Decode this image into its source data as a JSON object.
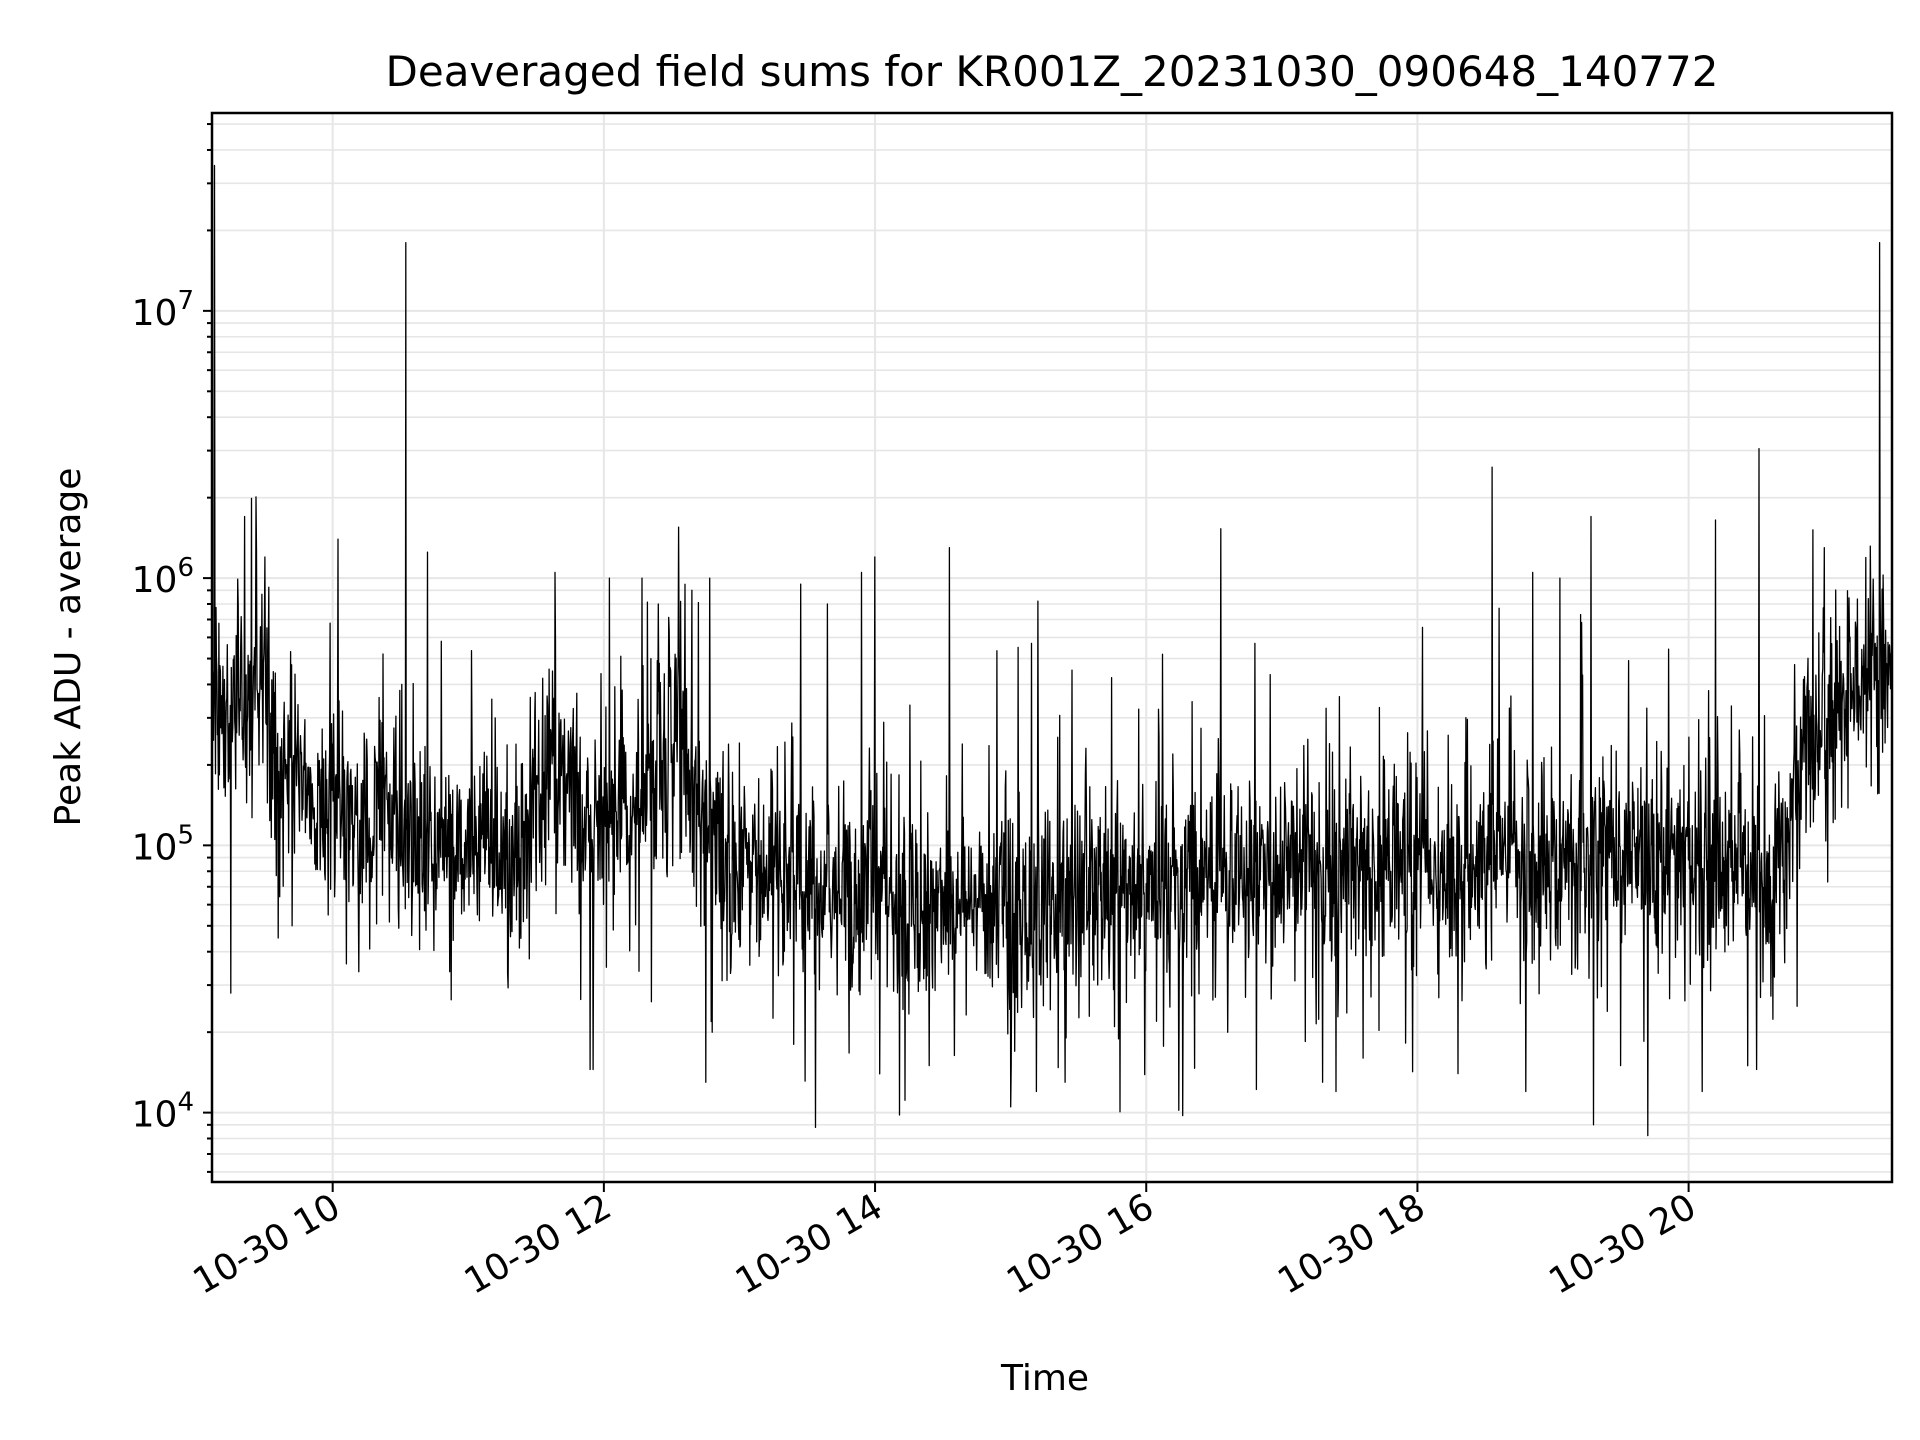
{
  "chart_data": {
    "type": "line",
    "title": "Deaveraged field sums for KR001Z_20231030_090648_140772",
    "xlabel": "Time",
    "ylabel": "Peak ADU - average",
    "x_range_hours": [
      9.11,
      21.5
    ],
    "ylim": [
      5500,
      55000000
    ],
    "yscale": "log",
    "grid": true,
    "line_color": "#000000",
    "x_ticks": [
      {
        "hour": 10,
        "label": "10-30 10"
      },
      {
        "hour": 12,
        "label": "10-30 12"
      },
      {
        "hour": 14,
        "label": "10-30 14"
      },
      {
        "hour": 16,
        "label": "10-30 16"
      },
      {
        "hour": 18,
        "label": "10-30 18"
      },
      {
        "hour": 20,
        "label": "10-30 20"
      }
    ],
    "y_ticks": [
      {
        "value": 10000,
        "base": "10",
        "exp": "4"
      },
      {
        "value": 100000,
        "base": "10",
        "exp": "5"
      },
      {
        "value": 1000000,
        "base": "10",
        "exp": "6"
      },
      {
        "value": 10000000,
        "base": "10",
        "exp": "7"
      }
    ],
    "baseline": [
      [
        9.11,
        300000
      ],
      [
        9.35,
        320000
      ],
      [
        9.5,
        500000
      ],
      [
        9.6,
        180000
      ],
      [
        9.8,
        160000
      ],
      [
        10.1,
        130000
      ],
      [
        10.6,
        110000
      ],
      [
        11.0,
        100000
      ],
      [
        11.4,
        100000
      ],
      [
        11.6,
        180000
      ],
      [
        11.8,
        130000
      ],
      [
        12.0,
        120000
      ],
      [
        12.2,
        120000
      ],
      [
        12.4,
        200000
      ],
      [
        12.6,
        280000
      ],
      [
        12.7,
        140000
      ],
      [
        12.9,
        80000
      ],
      [
        13.2,
        75000
      ],
      [
        13.6,
        70000
      ],
      [
        14.0,
        65000
      ],
      [
        14.5,
        62000
      ],
      [
        15.0,
        60000
      ],
      [
        15.5,
        62000
      ],
      [
        16.0,
        70000
      ],
      [
        16.5,
        80000
      ],
      [
        17.0,
        85000
      ],
      [
        17.5,
        80000
      ],
      [
        18.0,
        85000
      ],
      [
        18.5,
        90000
      ],
      [
        19.0,
        90000
      ],
      [
        19.5,
        85000
      ],
      [
        20.0,
        85000
      ],
      [
        20.4,
        80000
      ],
      [
        20.7,
        80000
      ],
      [
        20.8,
        200000
      ],
      [
        21.0,
        300000
      ],
      [
        21.2,
        380000
      ],
      [
        21.5,
        500000
      ]
    ],
    "spikes": [
      [
        9.13,
        35000000
      ],
      [
        9.35,
        1700000
      ],
      [
        9.5,
        1200000
      ],
      [
        10.04,
        1400000
      ],
      [
        10.37,
        520000
      ],
      [
        10.54,
        18000000
      ],
      [
        10.7,
        1250000
      ],
      [
        10.8,
        580000
      ],
      [
        11.2,
        300000
      ],
      [
        11.64,
        1050000
      ],
      [
        11.92,
        14500
      ],
      [
        12.04,
        1000000
      ],
      [
        12.28,
        1000000
      ],
      [
        12.4,
        800000
      ],
      [
        12.55,
        1550000
      ],
      [
        12.65,
        900000
      ],
      [
        12.78,
        1000000
      ],
      [
        12.75,
        13000
      ],
      [
        13.45,
        950000
      ],
      [
        13.56,
        8800
      ],
      [
        13.65,
        800000
      ],
      [
        13.9,
        1050000
      ],
      [
        14.18,
        9800
      ],
      [
        14.0,
        1200000
      ],
      [
        14.55,
        1300000
      ],
      [
        15.0,
        10500
      ],
      [
        15.2,
        820000
      ],
      [
        16.24,
        10200
      ],
      [
        16.55,
        1530000
      ],
      [
        16.8,
        570000
      ],
      [
        17.4,
        12000
      ],
      [
        18.55,
        2600000
      ],
      [
        18.85,
        1050000
      ],
      [
        19.05,
        1000000
      ],
      [
        19.28,
        1700000
      ],
      [
        19.7,
        8200
      ],
      [
        19.3,
        9000
      ],
      [
        20.2,
        1650000
      ],
      [
        20.52,
        3050000
      ],
      [
        20.8,
        1400000
      ],
      [
        21.0,
        1300000
      ],
      [
        21.41,
        18000000
      ]
    ],
    "dips": [
      [
        9.25,
        28000
      ],
      [
        9.6,
        45000
      ],
      [
        9.7,
        50000
      ],
      [
        10.1,
        36000
      ],
      [
        11.9,
        14500
      ],
      [
        12.35,
        26000
      ],
      [
        12.8,
        20000
      ],
      [
        13.4,
        18000
      ],
      [
        14.4,
        15000
      ],
      [
        15.4,
        13000
      ],
      [
        16.6,
        20000
      ],
      [
        17.3,
        13000
      ],
      [
        17.6,
        16000
      ],
      [
        18.3,
        14000
      ],
      [
        18.8,
        12000
      ],
      [
        19.5,
        15000
      ],
      [
        20.1,
        12000
      ],
      [
        20.5,
        14500
      ],
      [
        20.8,
        25000
      ]
    ],
    "sample_count": 3400,
    "random_seed": 140772
  }
}
